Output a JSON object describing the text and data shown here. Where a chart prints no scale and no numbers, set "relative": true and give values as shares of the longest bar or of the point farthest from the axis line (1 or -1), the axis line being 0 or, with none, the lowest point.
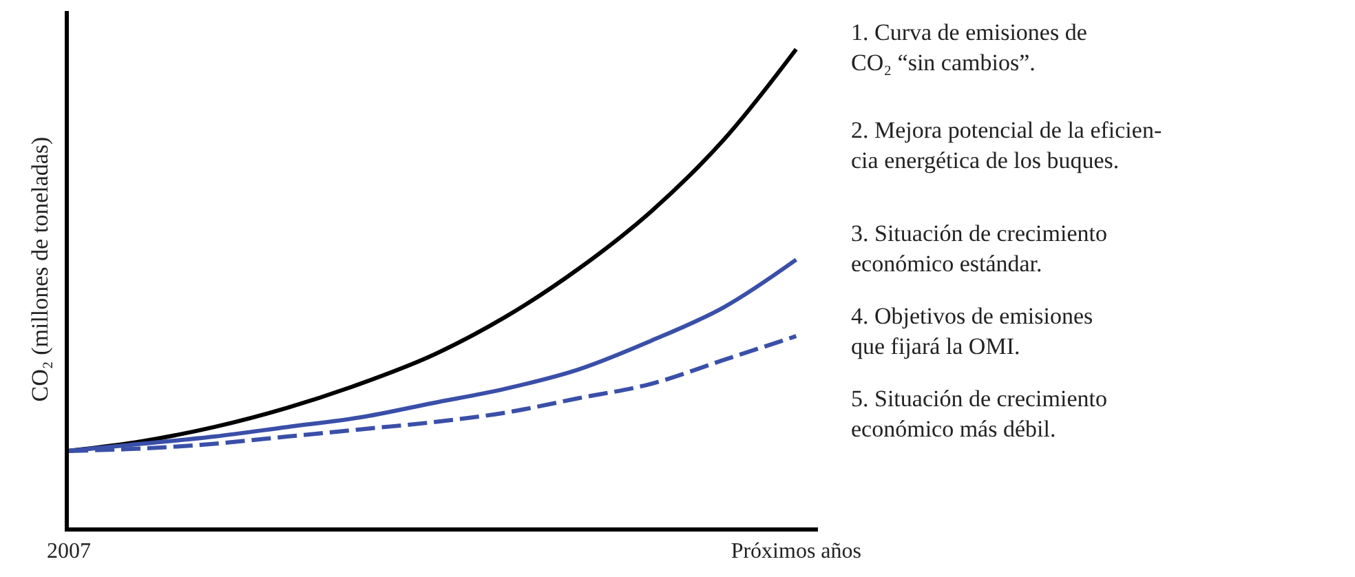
{
  "chart_data": {
    "type": "line",
    "relative": true,
    "ylabel": "CO₂ (millones de toneladas)",
    "categories": [
      "2007",
      null,
      null,
      null,
      null,
      null,
      null,
      null,
      null,
      null,
      "Próximos años"
    ],
    "series": [
      {
        "color": "#000000",
        "line_style": "solid",
        "values": [
          0.16,
          0.18,
          0.21,
          0.25,
          0.3,
          0.36,
          0.44,
          0.54,
          0.66,
          0.81,
          1.0
        ]
      },
      {
        "color": "#3a4fa8",
        "line_style": "solid",
        "values": [
          0.16,
          0.175,
          0.19,
          0.21,
          0.23,
          0.26,
          0.29,
          0.33,
          0.39,
          0.46,
          0.56
        ]
      },
      {
        "color": "#3a4fa8",
        "line_style": "dashed",
        "values": [
          0.16,
          0.165,
          0.175,
          0.19,
          0.205,
          0.22,
          0.24,
          0.27,
          0.3,
          0.35,
          0.4
        ]
      }
    ],
    "annotations": [
      "1. Curva de emisiones de\nCO₂ “sin cambios”.",
      "2. Mejora potencial de la eficien-\ncia energética de los buques.",
      "3. Situación de crecimiento\neconómico estándar.",
      "4. Objetivos de emisiones\nque fijará la OMI.",
      "5. Situación de crecimiento\neconómico más débil."
    ],
    "marker": "none",
    "tick_labels": "x"
  }
}
